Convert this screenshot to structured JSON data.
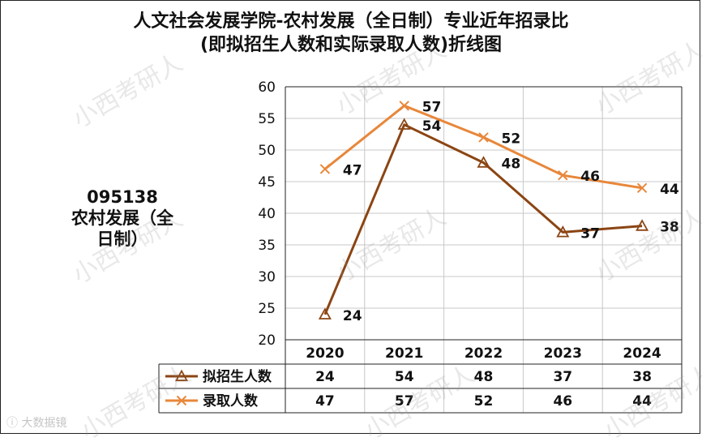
{
  "title_line1": "人文社会发展学院-农村发展（全日制）专业近年招录比",
  "title_line2": "(即拟招生人数和实际录取人数)折线图",
  "side_label": {
    "code": "095138",
    "name_line1": "农村发展（全",
    "name_line2": "日制）"
  },
  "watermark_text": "小西考研人",
  "corner_logo_text": "大数据镜",
  "colors": {
    "planned": "#8B4513",
    "admitted": "#E8873A",
    "grid": "#c8c8c8",
    "axis": "#222222"
  },
  "chart_data": {
    "type": "line",
    "categories": [
      "2020",
      "2021",
      "2022",
      "2023",
      "2024"
    ],
    "ylim": [
      20,
      60
    ],
    "yticks": [
      20,
      25,
      30,
      35,
      40,
      45,
      50,
      55,
      60
    ],
    "series": [
      {
        "name": "拟招生人数",
        "marker": "triangle",
        "values": [
          24,
          54,
          48,
          37,
          38
        ]
      },
      {
        "name": "录取人数",
        "marker": "x",
        "values": [
          47,
          57,
          52,
          46,
          44
        ]
      }
    ],
    "data_table": true,
    "xlabel": "",
    "ylabel": ""
  }
}
